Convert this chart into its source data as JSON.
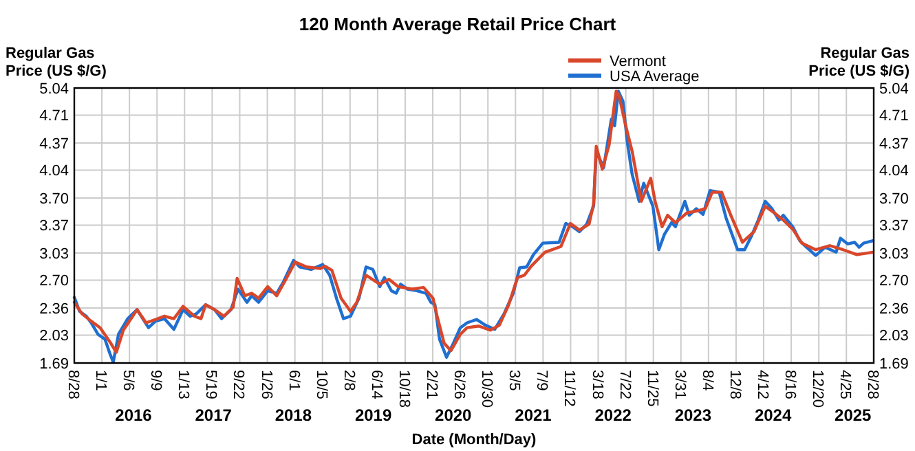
{
  "chart_data": {
    "type": "line",
    "title": "120 Month Average Retail Price Chart",
    "xlabel": "Date (Month/Day)",
    "ylabel": "Regular Gas Price (US $/G)",
    "y2label": "Regular Gas Price (US $/G)",
    "legend": "top",
    "grid": true,
    "marker": "none",
    "line_style": "solid",
    "xlim": [
      "2015-08-28",
      "2025-08-28"
    ],
    "xticks": [
      {
        "value": "2015-08-28",
        "label": "8/28"
      },
      {
        "value": "2016-01-01",
        "label": "1/1"
      },
      {
        "value": "2016-05-06",
        "label": "5/6"
      },
      {
        "value": "2016-09-09",
        "label": "9/9"
      },
      {
        "value": "2017-01-13",
        "label": "1/13"
      },
      {
        "value": "2017-05-19",
        "label": "5/19"
      },
      {
        "value": "2017-09-22",
        "label": "9/22"
      },
      {
        "value": "2018-01-26",
        "label": "1/26"
      },
      {
        "value": "2018-06-01",
        "label": "6/1"
      },
      {
        "value": "2018-10-05",
        "label": "10/5"
      },
      {
        "value": "2019-02-08",
        "label": "2/8"
      },
      {
        "value": "2019-06-14",
        "label": "6/14"
      },
      {
        "value": "2019-10-18",
        "label": "10/18"
      },
      {
        "value": "2020-02-21",
        "label": "2/21"
      },
      {
        "value": "2020-06-26",
        "label": "6/26"
      },
      {
        "value": "2020-10-30",
        "label": "10/30"
      },
      {
        "value": "2021-03-05",
        "label": "3/5"
      },
      {
        "value": "2021-07-09",
        "label": "7/9"
      },
      {
        "value": "2021-11-12",
        "label": "11/12"
      },
      {
        "value": "2022-03-18",
        "label": "3/18"
      },
      {
        "value": "2022-07-22",
        "label": "7/22"
      },
      {
        "value": "2022-11-25",
        "label": "11/25"
      },
      {
        "value": "2023-03-31",
        "label": "3/31"
      },
      {
        "value": "2023-08-04",
        "label": "8/4"
      },
      {
        "value": "2023-12-08",
        "label": "12/8"
      },
      {
        "value": "2024-04-12",
        "label": "4/12"
      },
      {
        "value": "2024-08-16",
        "label": "8/16"
      },
      {
        "value": "2024-12-20",
        "label": "12/20"
      },
      {
        "value": "2025-04-25",
        "label": "4/25"
      },
      {
        "value": "2025-08-28",
        "label": "8/28"
      }
    ],
    "ylim": [
      1.69,
      5.04
    ],
    "yticks": [
      1.69,
      2.03,
      2.36,
      {
        "value": 2.7,
        "label": "2.70"
      },
      3.03,
      3.37,
      {
        "value": 3.7,
        "label": "3.70"
      },
      4.04,
      4.37,
      4.71,
      5.04
    ],
    "y2lim": [
      1.69,
      5.04
    ],
    "y2ticks": [
      1.69,
      2.03,
      2.36,
      {
        "value": 2.7,
        "label": "2.70"
      },
      3.03,
      3.37,
      {
        "value": 3.7,
        "label": "3.70"
      },
      4.04,
      4.37,
      4.71,
      5.04
    ],
    "annotations": [
      "2016",
      "2017",
      "2018",
      "2019",
      "2020",
      "2021",
      "2022",
      "2023",
      "2024",
      "2025"
    ],
    "series": [
      {
        "name": "Vermont",
        "color": "#d9472b",
        "x": [
          "2015-08-28",
          "2015-10-02",
          "2015-11-13",
          "2015-12-24",
          "2016-02-06",
          "2016-03-07",
          "2016-04-08",
          "2016-06-10",
          "2016-07-21",
          "2016-09-02",
          "2016-10-13",
          "2016-11-25",
          "2017-01-06",
          "2017-02-27",
          "2017-03-29",
          "2017-04-19",
          "2017-05-30",
          "2017-07-12",
          "2017-08-23",
          "2017-09-10",
          "2017-10-15",
          "2017-11-16",
          "2017-12-17",
          "2018-01-28",
          "2018-03-10",
          "2018-04-21",
          "2018-06-02",
          "2018-07-24",
          "2018-09-26",
          "2018-10-16",
          "2018-11-17",
          "2018-12-29",
          "2019-02-10",
          "2019-03-11",
          "2019-04-22",
          "2019-06-24",
          "2019-08-05",
          "2019-09-16",
          "2019-11-19",
          "2020-01-10",
          "2020-02-22",
          "2020-03-12",
          "2020-04-13",
          "2020-05-14",
          "2020-06-26",
          "2020-07-27",
          "2020-09-18",
          "2020-11-10",
          "2020-12-21",
          "2021-02-02",
          "2021-03-14",
          "2021-04-15",
          "2021-05-16",
          "2021-07-18",
          "2021-09-29",
          "2021-11-11",
          "2021-12-22",
          "2022-02-04",
          "2022-02-25",
          "2022-03-09",
          "2022-04-06",
          "2022-05-07",
          "2022-06-08",
          "2022-06-22",
          "2022-07-19",
          "2022-08-20",
          "2022-10-01",
          "2022-11-13",
          "2022-12-03",
          "2023-01-04",
          "2023-01-29",
          "2023-03-06",
          "2023-04-28",
          "2023-06-09",
          "2023-07-20",
          "2023-08-21",
          "2023-10-03",
          "2023-11-14",
          "2024-01-06",
          "2024-02-28",
          "2024-04-19",
          "2024-05-30",
          "2024-07-11",
          "2024-08-23",
          "2024-10-04",
          "2024-12-06",
          "2025-02-08",
          "2025-04-10",
          "2025-06-12",
          "2025-08-25"
        ],
        "values": [
          2.43,
          2.29,
          2.2,
          2.12,
          1.95,
          1.82,
          2.09,
          2.34,
          2.18,
          2.22,
          2.26,
          2.23,
          2.38,
          2.26,
          2.23,
          2.4,
          2.34,
          2.26,
          2.37,
          2.72,
          2.51,
          2.54,
          2.48,
          2.62,
          2.51,
          2.71,
          2.92,
          2.86,
          2.84,
          2.87,
          2.82,
          2.48,
          2.32,
          2.43,
          2.76,
          2.65,
          2.71,
          2.62,
          2.59,
          2.61,
          2.48,
          2.26,
          1.93,
          1.84,
          2.04,
          2.12,
          2.14,
          2.09,
          2.15,
          2.4,
          2.73,
          2.76,
          2.87,
          3.04,
          3.11,
          3.39,
          3.31,
          3.38,
          3.63,
          4.33,
          4.05,
          4.35,
          5.0,
          4.94,
          4.61,
          4.27,
          3.66,
          3.94,
          3.66,
          3.35,
          3.49,
          3.4,
          3.52,
          3.54,
          3.57,
          3.77,
          3.77,
          3.49,
          3.16,
          3.29,
          3.6,
          3.52,
          3.43,
          3.32,
          3.15,
          3.07,
          3.12,
          3.07,
          3.01,
          3.04
        ]
      },
      {
        "name": "USA Average",
        "color": "#1f6fd0",
        "x": [
          "2015-08-28",
          "2015-09-21",
          "2015-10-22",
          "2015-11-13",
          "2015-12-14",
          "2016-01-15",
          "2016-02-06",
          "2016-02-22",
          "2016-03-17",
          "2016-04-28",
          "2016-06-10",
          "2016-08-01",
          "2016-09-02",
          "2016-10-13",
          "2016-11-25",
          "2017-01-06",
          "2017-02-07",
          "2017-03-08",
          "2017-04-19",
          "2017-05-30",
          "2017-07-01",
          "2017-08-13",
          "2017-09-14",
          "2017-10-25",
          "2017-11-16",
          "2017-12-17",
          "2018-01-28",
          "2018-03-10",
          "2018-04-10",
          "2018-05-26",
          "2018-06-23",
          "2018-08-14",
          "2018-10-06",
          "2018-11-07",
          "2018-12-08",
          "2019-01-09",
          "2019-02-10",
          "2019-03-21",
          "2019-04-22",
          "2019-05-23",
          "2019-06-24",
          "2019-07-15",
          "2019-08-16",
          "2019-09-07",
          "2019-09-27",
          "2019-10-28",
          "2019-12-10",
          "2020-01-21",
          "2020-02-12",
          "2020-03-02",
          "2020-03-23",
          "2020-04-24",
          "2020-05-25",
          "2020-06-26",
          "2020-07-27",
          "2020-09-08",
          "2020-10-19",
          "2020-11-30",
          "2021-01-12",
          "2021-02-23",
          "2021-03-24",
          "2021-04-25",
          "2021-05-26",
          "2021-07-08",
          "2021-09-20",
          "2021-10-21",
          "2021-11-21",
          "2021-12-22",
          "2022-01-24",
          "2022-02-25",
          "2022-03-09",
          "2022-04-12",
          "2022-05-17",
          "2022-06-01",
          "2022-06-18",
          "2022-07-09",
          "2022-07-29",
          "2022-08-20",
          "2022-09-21",
          "2022-10-12",
          "2022-11-02",
          "2022-11-23",
          "2022-12-20",
          "2023-01-15",
          "2023-02-16",
          "2023-03-06",
          "2023-04-18",
          "2023-05-08",
          "2023-06-09",
          "2023-07-10",
          "2023-08-11",
          "2023-09-22",
          "2023-10-23",
          "2023-12-15",
          "2024-01-16",
          "2024-02-17",
          "2024-03-18",
          "2024-04-19",
          "2024-05-20",
          "2024-06-21",
          "2024-07-11",
          "2024-08-23",
          "2024-09-24",
          "2024-10-25",
          "2024-12-06",
          "2025-01-18",
          "2025-03-09",
          "2025-03-29",
          "2025-05-01",
          "2025-06-02",
          "2025-06-22",
          "2025-07-13",
          "2025-08-25"
        ],
        "values": [
          2.49,
          2.32,
          2.26,
          2.18,
          2.04,
          1.98,
          1.81,
          1.7,
          2.04,
          2.23,
          2.34,
          2.12,
          2.2,
          2.23,
          2.1,
          2.34,
          2.26,
          2.29,
          2.4,
          2.34,
          2.23,
          2.34,
          2.59,
          2.43,
          2.51,
          2.43,
          2.57,
          2.54,
          2.68,
          2.94,
          2.86,
          2.83,
          2.89,
          2.76,
          2.48,
          2.23,
          2.26,
          2.48,
          2.86,
          2.83,
          2.62,
          2.73,
          2.57,
          2.54,
          2.65,
          2.59,
          2.57,
          2.54,
          2.43,
          2.4,
          1.98,
          1.76,
          1.93,
          2.12,
          2.18,
          2.22,
          2.15,
          2.1,
          2.29,
          2.54,
          2.85,
          2.86,
          3.01,
          3.15,
          3.16,
          3.39,
          3.35,
          3.29,
          3.38,
          3.6,
          4.27,
          4.07,
          4.66,
          4.58,
          5.0,
          4.88,
          4.38,
          3.99,
          3.66,
          3.88,
          3.74,
          3.6,
          3.07,
          3.26,
          3.4,
          3.35,
          3.66,
          3.49,
          3.57,
          3.5,
          3.79,
          3.77,
          3.46,
          3.07,
          3.07,
          3.24,
          3.43,
          3.66,
          3.57,
          3.43,
          3.49,
          3.35,
          3.18,
          3.1,
          3.0,
          3.1,
          3.04,
          3.21,
          3.14,
          3.16,
          3.1,
          3.15,
          3.18
        ]
      }
    ]
  }
}
